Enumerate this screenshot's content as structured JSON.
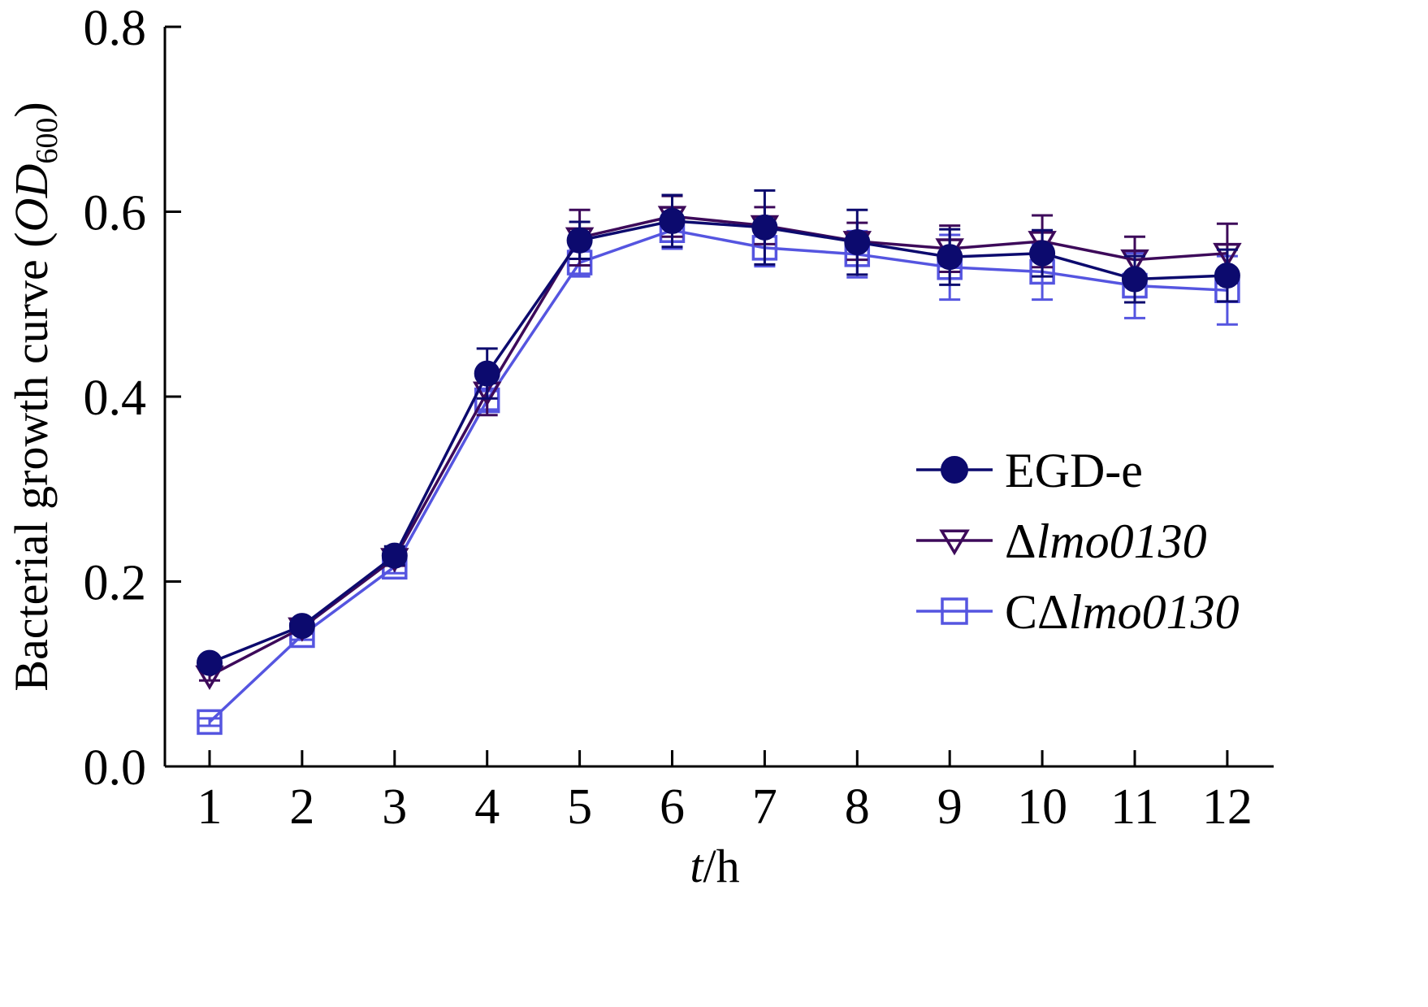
{
  "chart_data": {
    "type": "line",
    "x": [
      1,
      2,
      3,
      4,
      5,
      6,
      7,
      8,
      9,
      10,
      11,
      12
    ],
    "xticks": [
      "1",
      "2",
      "3",
      "4",
      "5",
      "6",
      "7",
      "8",
      "9",
      "10",
      "11",
      "12"
    ],
    "yticks": [
      "0.0",
      "0.2",
      "0.4",
      "0.6",
      "0.8"
    ],
    "ylim": [
      0,
      0.8
    ],
    "xlim": [
      0.5,
      13
    ],
    "ylabel": {
      "main": "Bacterial growth curve (",
      "italic": "OD",
      "sub": "600",
      "close": ")"
    },
    "xlabel": {
      "italic": "t",
      "rest": "/h"
    },
    "legend_position": "right-middle",
    "grid": false,
    "series": [
      {
        "name": {
          "prefix": "EGD-e",
          "italic": ""
        },
        "marker": "filled-circle",
        "color": "#0c0a6e",
        "values": [
          0.112,
          0.152,
          0.228,
          0.425,
          0.569,
          0.59,
          0.583,
          0.567,
          0.551,
          0.555,
          0.527,
          0.531
        ],
        "errors": [
          0.006,
          0.006,
          0.01,
          0.027,
          0.02,
          0.028,
          0.04,
          0.035,
          0.03,
          0.025,
          0.025,
          0.028
        ]
      },
      {
        "name": {
          "prefix": "Δ",
          "italic": "lmo0130"
        },
        "marker": "open-triangle-down",
        "color": "#3d0a5a",
        "values": [
          0.098,
          0.15,
          0.225,
          0.405,
          0.572,
          0.595,
          0.585,
          0.568,
          0.56,
          0.568,
          0.548,
          0.555
        ],
        "errors": [
          0.005,
          0.006,
          0.008,
          0.025,
          0.03,
          0.022,
          0.02,
          0.02,
          0.025,
          0.028,
          0.025,
          0.032
        ]
      },
      {
        "name": {
          "prefix": "C",
          "italic": "lmo0130",
          "delta": "Δ"
        },
        "marker": "open-square",
        "color": "#5555e0",
        "values": [
          0.048,
          0.142,
          0.216,
          0.396,
          0.545,
          0.58,
          0.561,
          0.554,
          0.54,
          0.535,
          0.52,
          0.515
        ],
        "errors": [
          0.004,
          0.005,
          0.007,
          0.01,
          0.015,
          0.02,
          0.02,
          0.025,
          0.035,
          0.03,
          0.035,
          0.037
        ]
      }
    ]
  },
  "colors": {
    "axis": "#000000",
    "background": "#ffffff"
  }
}
